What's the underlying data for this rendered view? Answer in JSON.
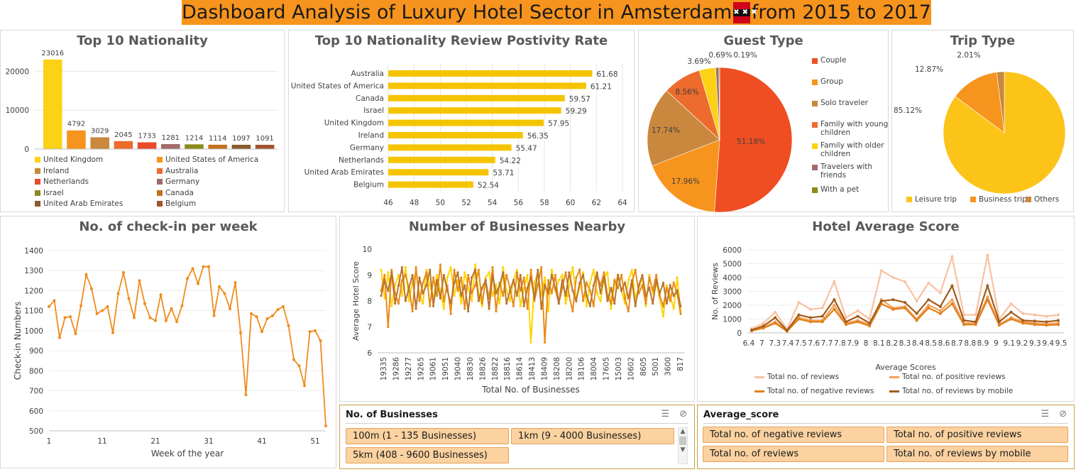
{
  "title": {
    "before": "Dashboard Analysis of Luxury Hotel Sector in Amsterdam",
    "after": "from 2015 to 2017"
  },
  "colors": {
    "accent": "#f7941d",
    "line": "#f08c1c",
    "slicer_fill": "#fbd2a0"
  },
  "nationality": {
    "title": "Top 10 Nationality",
    "chart_data": {
      "type": "bar",
      "title": "Top 10 Nationality",
      "categories": [
        "United Kingdom",
        "United States of America",
        "Ireland",
        "Australia",
        "Netherlands",
        "Germany",
        "Israel",
        "Canada",
        "United Arab Emirates",
        "Belgium"
      ],
      "values": [
        23016,
        4792,
        3029,
        2045,
        1733,
        1281,
        1214,
        1114,
        1097,
        1091
      ],
      "colors": [
        "#fcd116",
        "#f7941d",
        "#c9883e",
        "#ec6b2d",
        "#e84a2a",
        "#a26a6a",
        "#8c8a1a",
        "#c2701e",
        "#8b5a2b",
        "#a0522d"
      ],
      "ylim": [
        0,
        25000
      ],
      "yticks": [
        0,
        10000,
        20000
      ],
      "grid": true,
      "legend": "bottom"
    }
  },
  "positivity": {
    "title": "Top 10 Nationality Review Postivity Rate",
    "chart_data": {
      "type": "bar",
      "orientation": "horizontal",
      "title": "Top 10 Nationality Review Postivity Rate",
      "categories": [
        "Australia",
        "United States of America",
        "Canada",
        "Israel",
        "United Kingdom",
        "Ireland",
        "Germany",
        "Netherlands",
        "United Arab Emirates",
        "Belgium"
      ],
      "values": [
        61.68,
        61.21,
        59.57,
        59.29,
        57.95,
        56.35,
        55.47,
        54.22,
        53.71,
        52.54
      ],
      "xlim": [
        46,
        64
      ],
      "xticks": [
        46,
        48,
        50,
        52,
        54,
        56,
        58,
        60,
        62,
        64
      ],
      "grid": true,
      "color": "#f5c400"
    }
  },
  "guest": {
    "title": "Guest Type",
    "chart_data": {
      "type": "pie",
      "title": "Guest Type",
      "labels": [
        "Couple",
        "Group",
        "Solo traveler",
        "Family with young children",
        "Family with older children",
        "Travelers with friends",
        "With a pet"
      ],
      "legend_lines": [
        [
          "Couple"
        ],
        [
          "Group"
        ],
        [
          "Solo traveler"
        ],
        [
          "Family with young",
          "children"
        ],
        [
          "Family with older",
          "children"
        ],
        [
          "Travelers with",
          "friends"
        ],
        [
          "With a pet"
        ]
      ],
      "values": [
        51.18,
        17.96,
        17.74,
        8.56,
        3.69,
        0.69,
        0.19
      ],
      "value_labels": [
        "51.18%",
        "17.96%",
        "17.74%",
        "8.56%",
        "3.69%",
        "0.69%",
        "0.19%"
      ],
      "colors": [
        "#ef4e23",
        "#f7941d",
        "#c9883e",
        "#ec6b2d",
        "#fcd116",
        "#a26a6a",
        "#8c8a1a"
      ],
      "legend": "right"
    }
  },
  "trip": {
    "title": "Trip Type",
    "chart_data": {
      "type": "pie",
      "title": "Trip Type",
      "labels": [
        "Leisure trip",
        "Business trip",
        "Others"
      ],
      "values": [
        85.12,
        12.87,
        2.01
      ],
      "value_labels": [
        "85.12%",
        "12.87%",
        "2.01%"
      ],
      "colors": [
        "#fcc419",
        "#f7941d",
        "#c9883e"
      ],
      "legend": "bottom"
    }
  },
  "checkin": {
    "title": "No. of check-in per week",
    "chart_data": {
      "type": "line",
      "title": "No. of check-in per week",
      "xlabel": "Week of the year",
      "ylabel": "Check-in Numbers",
      "x": [
        1,
        2,
        3,
        4,
        5,
        6,
        7,
        8,
        9,
        10,
        11,
        12,
        13,
        14,
        15,
        16,
        17,
        18,
        19,
        20,
        21,
        22,
        23,
        24,
        25,
        26,
        27,
        28,
        29,
        30,
        31,
        32,
        33,
        34,
        35,
        36,
        37,
        38,
        39,
        40,
        41,
        42,
        43,
        44,
        45,
        46,
        47,
        48,
        49,
        50,
        51,
        52,
        53
      ],
      "y": [
        1120,
        1150,
        965,
        1065,
        1070,
        985,
        1125,
        1280,
        1210,
        1085,
        1100,
        1120,
        990,
        1185,
        1290,
        1160,
        1065,
        1250,
        1135,
        1065,
        1050,
        1180,
        1050,
        1110,
        1045,
        1125,
        1260,
        1310,
        1235,
        1320,
        1320,
        1075,
        1220,
        1185,
        1110,
        1240,
        990,
        680,
        1085,
        1070,
        995,
        1060,
        1075,
        1105,
        1120,
        1025,
        855,
        825,
        725,
        995,
        1000,
        950,
        525
      ],
      "xticks": [
        1,
        11,
        21,
        31,
        41,
        51
      ],
      "ylim": [
        500,
        1400
      ],
      "yticks": [
        500,
        600,
        700,
        800,
        900,
        1000,
        1100,
        1200,
        1300,
        1400
      ],
      "color": "#f08c1c"
    }
  },
  "business": {
    "title": "Number of Businesses Nearby",
    "chart_data": {
      "type": "line",
      "title": "Number of Businesses Nearby",
      "xlabel": "Total No. of Businesses",
      "ylabel": "Average Hotel Score",
      "ylim": [
        6,
        10
      ],
      "yticks": [
        6,
        7,
        8,
        9,
        10
      ],
      "xtick_labels": [
        "19335",
        "19286",
        "19277",
        "19265",
        "19061",
        "19051",
        "19040",
        "18830",
        "18826",
        "18822",
        "18816",
        "18614",
        "18413",
        "18409",
        "18208",
        "18200",
        "18106",
        "18004",
        "17605",
        "15003",
        "10602",
        "8605",
        "5001",
        "3600",
        "817"
      ],
      "series": [
        {
          "values": [
            9.2,
            8.1,
            9.1,
            7.8,
            8.6,
            9.0,
            8.2,
            9.3,
            8.0,
            8.7,
            9.1,
            8.3,
            7.9,
            9.2,
            8.6,
            8.1,
            9.0,
            8.4,
            7.7,
            8.9,
            9.3,
            8.2,
            8.8,
            7.9,
            9.1,
            8.5,
            8.0,
            9.4,
            8.3,
            7.8,
            8.9,
            9.1,
            8.2,
            8.6,
            7.9,
            9.3,
            8.4,
            8.0,
            8.8,
            9.2,
            7.8,
            8.5,
            9.0,
            6.4,
            8.7,
            9.1,
            8.2,
            8.9,
            7.6,
            9.2,
            8.4,
            8.8,
            9.0,
            7.9,
            8.6,
            9.3,
            8.1,
            8.5,
            9.1,
            7.8,
            8.7,
            9.2,
            8.3,
            8.0,
            8.9,
            9.1,
            7.7,
            8.6,
            9.0,
            8.4,
            7.9,
            8.8,
            9.2,
            8.1,
            8.5,
            8.9,
            7.8,
            9.0,
            8.3,
            8.7,
            8.1,
            7.4,
            8.6,
            8.2,
            7.7,
            8.9,
            7.6
          ],
          "color": "#ffd400"
        },
        {
          "values": [
            8.4,
            9.0,
            7.0,
            9.2,
            8.3,
            7.9,
            8.8,
            9.0,
            8.5,
            7.6,
            9.3,
            8.0,
            8.7,
            9.1,
            7.8,
            8.9,
            8.2,
            9.4,
            8.0,
            8.6,
            7.5,
            9.2,
            8.4,
            8.9,
            7.7,
            9.0,
            8.3,
            8.6,
            9.2,
            7.9,
            8.8,
            8.1,
            9.3,
            7.6,
            8.7,
            8.2,
            9.0,
            8.5,
            7.8,
            9.1,
            8.4,
            8.9,
            7.7,
            9.2,
            8.0,
            8.6,
            9.3,
            6.4,
            8.8,
            8.3,
            9.0,
            7.9,
            8.5,
            9.1,
            8.2,
            7.6,
            8.9,
            9.2,
            8.0,
            8.7,
            8.4,
            7.8,
            9.0,
            8.6,
            9.1,
            8.2,
            7.9,
            8.8,
            8.5,
            9.0,
            8.1,
            7.6,
            8.7,
            9.2,
            8.3,
            8.6,
            7.9,
            8.9,
            8.4,
            9.0,
            8.2,
            7.8,
            8.5,
            8.0,
            8.7,
            8.3,
            7.5
          ],
          "color": "#e88a1a"
        },
        {
          "values": [
            8.2,
            8.8,
            8.4,
            9.1,
            7.9,
            8.6,
            9.3,
            8.0,
            8.5,
            9.0,
            7.7,
            8.9,
            8.3,
            8.6,
            9.2,
            7.8,
            8.8,
            8.1,
            9.0,
            8.4,
            7.9,
            8.7,
            9.1,
            8.2,
            8.6,
            7.6,
            8.9,
            9.2,
            8.0,
            8.5,
            8.8,
            7.7,
            9.0,
            8.3,
            8.6,
            9.1,
            7.9,
            8.4,
            8.8,
            8.2,
            9.0,
            7.8,
            8.5,
            8.9,
            8.1,
            9.2,
            7.7,
            8.6,
            8.3,
            9.0,
            8.5,
            7.9,
            8.8,
            8.2,
            9.1,
            8.4,
            8.0,
            8.7,
            9.0,
            8.2,
            7.8,
            8.6,
            9.1,
            8.3,
            8.9,
            8.0,
            8.5,
            7.9,
            9.0,
            8.4,
            8.7,
            8.1,
            8.8,
            7.8,
            8.6,
            9.0,
            8.2,
            8.5,
            7.9,
            8.8,
            8.3,
            8.7,
            7.9,
            8.6,
            8.2,
            8.4,
            7.8
          ],
          "color": "#b8742f"
        }
      ]
    }
  },
  "avgscore": {
    "title": "Hotel Average Score",
    "chart_data": {
      "type": "line",
      "title": "Hotel Average Score",
      "xlabel": "Average Scores",
      "ylabel": "No. of Reviews",
      "categories": [
        "6.4",
        "6.9",
        "7",
        "7.1",
        "7.3",
        "7.4",
        "7.5",
        "7.6",
        "7.7",
        "7.8",
        "7.9",
        "8",
        "8.1",
        "8.2",
        "8.3",
        "8.4",
        "8.5",
        "8.6",
        "8.7",
        "8.8",
        "8.9",
        "9",
        "9.1",
        "9.2",
        "9.3",
        "9.4",
        "9.5"
      ],
      "xtick_labels": [
        "6.4",
        "7",
        "7.3",
        "7.4",
        "7.5",
        "7.6",
        "7.7",
        "7.8",
        "7.9",
        "8",
        "8.1",
        "8.2",
        "8.3",
        "8.4",
        "8.5",
        "8.6",
        "8.7",
        "8.8",
        "8.9",
        "9",
        "9.1",
        "9.2",
        "9.3",
        "9.4",
        "9.5"
      ],
      "ylim": [
        0,
        6000
      ],
      "yticks": [
        0,
        1000,
        2000,
        3000,
        4000,
        5000,
        6000
      ],
      "series": [
        {
          "name": "Total no. of reviews",
          "values": [
            300,
            700,
            1500,
            250,
            2200,
            1700,
            1800,
            3700,
            1100,
            1600,
            1000,
            4500,
            4000,
            3700,
            2300,
            3600,
            2900,
            5500,
            1300,
            1300,
            5600,
            1000,
            2100,
            1400,
            1300,
            1200,
            1300
          ],
          "color": "#f9c1a0"
        },
        {
          "name": "Total no. of positive reviews",
          "values": [
            200,
            400,
            800,
            150,
            1100,
            900,
            900,
            2000,
            700,
            900,
            600,
            2400,
            1800,
            1900,
            1000,
            2000,
            1600,
            2400,
            700,
            700,
            2600,
            600,
            1100,
            800,
            700,
            650,
            700
          ],
          "color": "#f5a05a"
        },
        {
          "name": "Total no. of negative reviews",
          "values": [
            150,
            350,
            700,
            120,
            1000,
            800,
            800,
            1700,
            600,
            800,
            500,
            2100,
            1700,
            1800,
            900,
            1800,
            1400,
            2100,
            600,
            600,
            2400,
            550,
            1000,
            700,
            600,
            550,
            600
          ],
          "color": "#e0801a"
        },
        {
          "name": "Total no. of reviews by mobile",
          "values": [
            200,
            500,
            1100,
            180,
            1300,
            1100,
            1200,
            2400,
            800,
            1200,
            700,
            2300,
            2400,
            2200,
            1400,
            2400,
            1900,
            3400,
            900,
            800,
            3400,
            800,
            1500,
            900,
            850,
            800,
            900
          ],
          "color": "#a35a1a"
        }
      ],
      "legend": "bottom"
    }
  },
  "slicer_businesses": {
    "title": "No. of Businesses",
    "items": [
      "100m (1 - 135 Businesses)",
      "1km (9 - 4000 Businesses)",
      "5km (408 - 9600 Businesses)"
    ]
  },
  "slicer_avg": {
    "title": "Average_score",
    "items": [
      "Total no. of negative reviews",
      "Total no. of positive reviews",
      "Total no. of reviews",
      "Total no. of reviews by mobile"
    ]
  }
}
